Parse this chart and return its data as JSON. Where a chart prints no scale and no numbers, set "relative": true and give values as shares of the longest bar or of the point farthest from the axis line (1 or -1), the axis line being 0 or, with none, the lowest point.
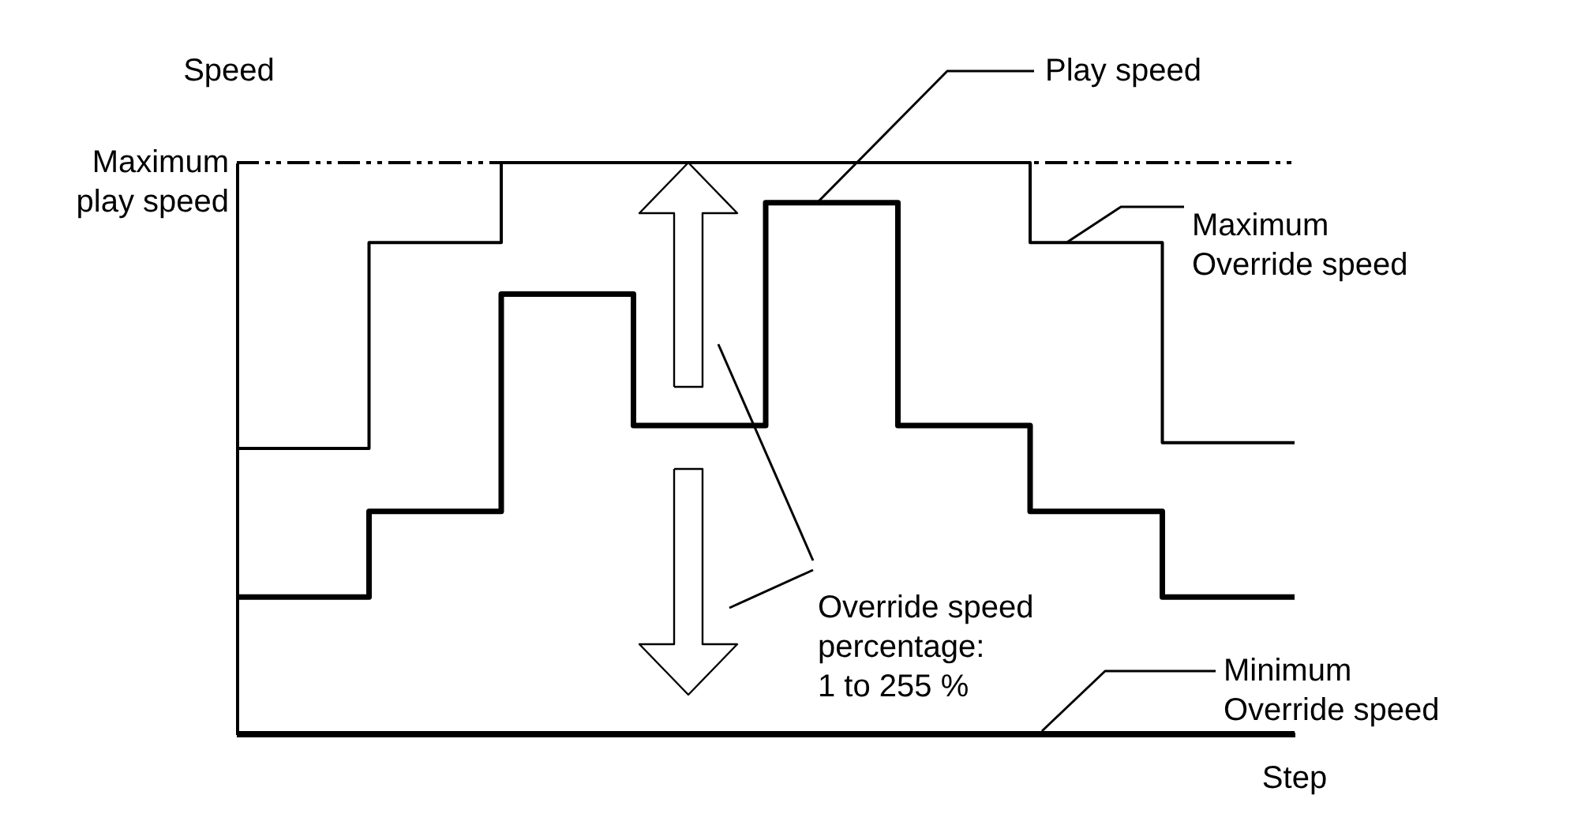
{
  "chart_data": {
    "type": "step",
    "relative": true,
    "categories": [
      null,
      null,
      null,
      null,
      null,
      null,
      null,
      null,
      null
    ],
    "ylabel": "Speed",
    "xlabel": "Step",
    "series": [
      {
        "name": "Maximum\nOverride speed",
        "color": "#000000",
        "values": [
          0.5,
          0.86,
          1,
          1,
          1,
          1,
          0.86,
          0.51,
          0.51
        ]
      },
      {
        "name": "Play speed",
        "color": "#000000",
        "values": [
          0.24,
          0.39,
          0.77,
          0.54,
          0.93,
          0.54,
          0.39,
          0.24,
          0.24
        ]
      },
      {
        "name": "Minimum\nOverride speed",
        "color": "#000000",
        "values": [
          0,
          0,
          0,
          0,
          0,
          0,
          0,
          0,
          0
        ]
      }
    ],
    "ref_lines": [
      {
        "axis": "y",
        "value": 1,
        "label": "Maximum\nplay speed",
        "color": "#000000",
        "line_style": "dashed"
      }
    ],
    "annotations": [
      "Override speed\npercentage:\n1 to 255 %"
    ],
    "marker": "none",
    "line_style": "solid",
    "grid": false,
    "tick_labels": false
  }
}
